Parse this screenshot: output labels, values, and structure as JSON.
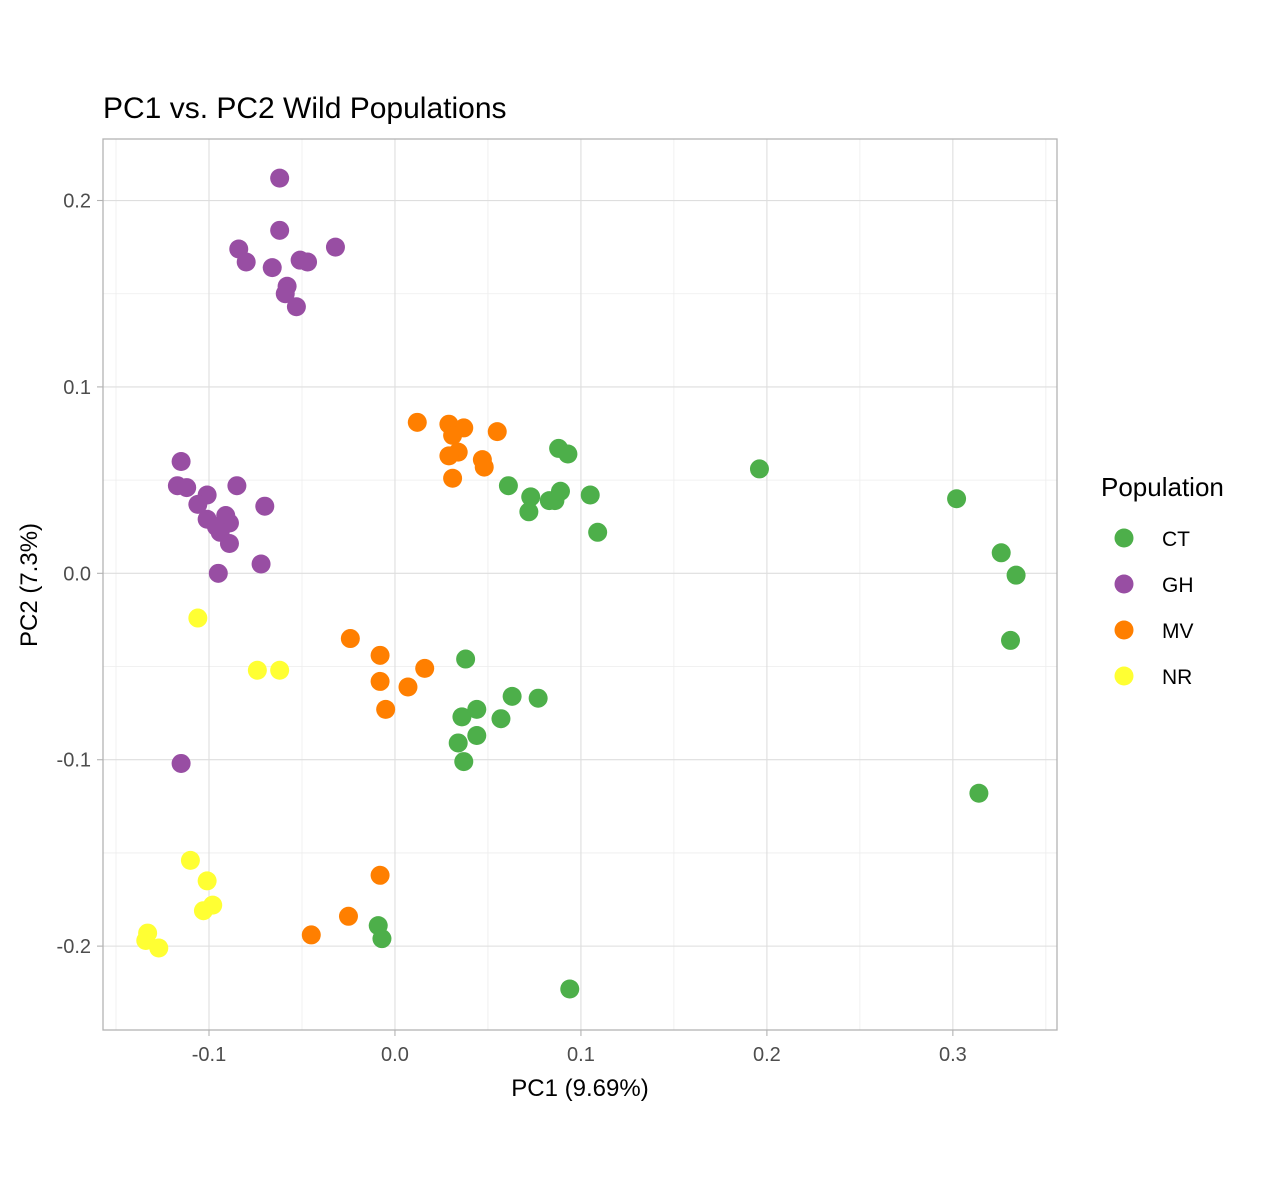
{
  "chart_data": {
    "type": "scatter",
    "title": "PC1 vs. PC2 Wild Populations",
    "xlabel": "PC1 (9.69%)",
    "ylabel": "PC2 (7.3%)",
    "xlim": [
      -0.157,
      0.356
    ],
    "ylim": [
      -0.245,
      0.233
    ],
    "x_ticks": [
      -0.1,
      0.0,
      0.1,
      0.2,
      0.3
    ],
    "x_tick_labels": [
      "-0.1",
      "0.0",
      "0.1",
      "0.2",
      "0.3"
    ],
    "y_ticks": [
      -0.2,
      -0.1,
      0.0,
      0.1,
      0.2
    ],
    "y_tick_labels": [
      "-0.2",
      "-0.1",
      "0.0",
      "0.1",
      "0.2"
    ],
    "grid": true,
    "legend": {
      "title": "Population",
      "position": "right"
    },
    "series": [
      {
        "name": "CT",
        "color": "#4daf4a",
        "points": [
          [
            0.088,
            0.067
          ],
          [
            0.093,
            0.064
          ],
          [
            0.061,
            0.047
          ],
          [
            0.073,
            0.041
          ],
          [
            0.083,
            0.039
          ],
          [
            0.086,
            0.039
          ],
          [
            0.089,
            0.044
          ],
          [
            0.105,
            0.042
          ],
          [
            0.072,
            0.033
          ],
          [
            0.109,
            0.022
          ],
          [
            0.196,
            0.056
          ],
          [
            0.302,
            0.04
          ],
          [
            0.326,
            0.011
          ],
          [
            0.334,
            -0.001
          ],
          [
            0.331,
            -0.036
          ],
          [
            0.314,
            -0.118
          ],
          [
            0.038,
            -0.046
          ],
          [
            0.036,
            -0.077
          ],
          [
            0.044,
            -0.073
          ],
          [
            0.063,
            -0.066
          ],
          [
            0.077,
            -0.067
          ],
          [
            0.057,
            -0.078
          ],
          [
            0.034,
            -0.091
          ],
          [
            0.044,
            -0.087
          ],
          [
            0.037,
            -0.101
          ],
          [
            -0.009,
            -0.189
          ],
          [
            -0.007,
            -0.196
          ],
          [
            0.094,
            -0.223
          ]
        ]
      },
      {
        "name": "GH",
        "color": "#984ea3",
        "points": [
          [
            -0.062,
            0.212
          ],
          [
            -0.062,
            0.184
          ],
          [
            -0.084,
            0.174
          ],
          [
            -0.032,
            0.175
          ],
          [
            -0.08,
            0.167
          ],
          [
            -0.066,
            0.164
          ],
          [
            -0.051,
            0.168
          ],
          [
            -0.047,
            0.167
          ],
          [
            -0.058,
            0.154
          ],
          [
            -0.059,
            0.15
          ],
          [
            -0.053,
            0.143
          ],
          [
            -0.115,
            0.06
          ],
          [
            -0.117,
            0.047
          ],
          [
            -0.112,
            0.046
          ],
          [
            -0.101,
            0.042
          ],
          [
            -0.106,
            0.037
          ],
          [
            -0.085,
            0.047
          ],
          [
            -0.07,
            0.036
          ],
          [
            -0.101,
            0.029
          ],
          [
            -0.091,
            0.031
          ],
          [
            -0.096,
            0.025
          ],
          [
            -0.089,
            0.027
          ],
          [
            -0.094,
            0.022
          ],
          [
            -0.089,
            0.016
          ],
          [
            -0.095,
            0.0
          ],
          [
            -0.072,
            0.005
          ],
          [
            -0.115,
            -0.102
          ]
        ]
      },
      {
        "name": "MV",
        "color": "#ff7f00",
        "points": [
          [
            0.012,
            0.081
          ],
          [
            0.029,
            0.08
          ],
          [
            0.037,
            0.078
          ],
          [
            0.055,
            0.076
          ],
          [
            0.031,
            0.074
          ],
          [
            0.034,
            0.065
          ],
          [
            0.029,
            0.063
          ],
          [
            0.047,
            0.061
          ],
          [
            0.048,
            0.057
          ],
          [
            0.031,
            0.051
          ],
          [
            -0.024,
            -0.035
          ],
          [
            -0.008,
            -0.044
          ],
          [
            0.016,
            -0.051
          ],
          [
            -0.008,
            -0.058
          ],
          [
            0.007,
            -0.061
          ],
          [
            -0.005,
            -0.073
          ],
          [
            -0.008,
            -0.162
          ],
          [
            -0.025,
            -0.184
          ],
          [
            -0.045,
            -0.194
          ]
        ]
      },
      {
        "name": "NR",
        "color": "#ffff33",
        "points": [
          [
            -0.106,
            -0.024
          ],
          [
            -0.074,
            -0.052
          ],
          [
            -0.062,
            -0.052
          ],
          [
            -0.11,
            -0.154
          ],
          [
            -0.101,
            -0.165
          ],
          [
            -0.098,
            -0.178
          ],
          [
            -0.103,
            -0.181
          ],
          [
            -0.133,
            -0.193
          ],
          [
            -0.134,
            -0.197
          ],
          [
            -0.127,
            -0.201
          ]
        ]
      }
    ]
  }
}
